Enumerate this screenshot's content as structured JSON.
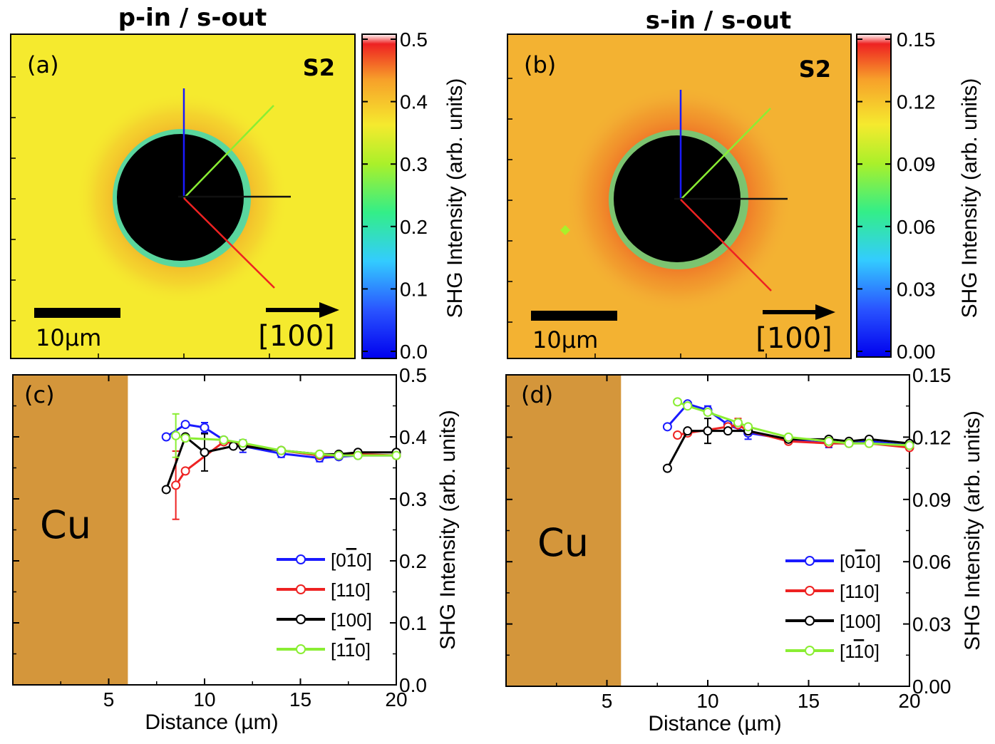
{
  "figure": {
    "panel_a": {
      "title": "p-in / s-out",
      "label": "(a)",
      "sample": "S2",
      "scale_bar": "10μm",
      "direction": "[100]",
      "colorbar": {
        "min": 0.0,
        "max": 0.5,
        "ticks": [
          "0.0",
          "0.1",
          "0.2",
          "0.3",
          "0.4",
          "0.5"
        ]
      },
      "colorbar_label": "SHG Intensity (arb. units)"
    },
    "panel_b": {
      "title": "s-in / s-out",
      "label": "(b)",
      "sample": "S2",
      "scale_bar": "10μm",
      "direction": "[100]",
      "colorbar": {
        "min": 0.0,
        "max": 0.15,
        "ticks": [
          "0.00",
          "0.03",
          "0.06",
          "0.09",
          "0.12",
          "0.15"
        ]
      },
      "colorbar_label": "SHG Intensity (arb. units)"
    },
    "panel_c": {
      "label": "(c)",
      "region_label": "Cu"
    },
    "panel_d": {
      "label": "(d)",
      "region_label": "Cu"
    },
    "colors": {
      "map_bg": "#f5ea2e",
      "map_ring": "#f0a62a",
      "cu": "#d4963b",
      "blue": "#1a1aff",
      "red": "#ee2222",
      "black": "#000000",
      "green": "#8aee33"
    }
  },
  "chart_data": [
    {
      "type": "line",
      "panel": "(c)",
      "xlabel": "Distance (µm)",
      "ylabel": "SHG Intensity (arb. units)",
      "xlim": [
        0,
        20
      ],
      "ylim": [
        0.0,
        0.5
      ],
      "xticks": [
        "5",
        "10",
        "15",
        "20"
      ],
      "yticks": [
        "0.0",
        "0.1",
        "0.2",
        "0.3",
        "0.4",
        "0.5"
      ],
      "cu_region": [
        0,
        6
      ],
      "legend_position": "bottom-right",
      "series": [
        {
          "name": "[0̅1̅0]",
          "name_main": "[0",
          "name_bar": "1",
          "name_end": "0]",
          "color": "#1a1aff",
          "x": [
            8.0,
            9.0,
            10.0,
            11.0,
            12.0,
            14.0,
            16.0,
            17.0,
            18.0,
            20.0
          ],
          "y": [
            0.4,
            0.42,
            0.415,
            0.395,
            0.385,
            0.373,
            0.366,
            0.368,
            0.37,
            0.37
          ],
          "err": [
            0,
            0,
            0.008,
            0,
            0.01,
            0.006,
            0.006,
            0,
            0,
            0
          ]
        },
        {
          "name": "[110]",
          "name_main": "[110]",
          "name_bar": "",
          "name_end": "",
          "color": "#ee2222",
          "x": [
            8.5,
            9.0,
            11.0,
            12.0,
            14.0,
            16.0,
            17.0,
            18.0,
            20.0
          ],
          "y": [
            0.322,
            0.345,
            0.392,
            0.388,
            0.378,
            0.37,
            0.37,
            0.372,
            0.37
          ],
          "err": [
            0.055,
            0,
            0,
            0,
            0,
            0,
            0,
            0,
            0
          ]
        },
        {
          "name": "[100]",
          "name_main": "[100]",
          "name_bar": "",
          "name_end": "",
          "color": "#000000",
          "x": [
            8.0,
            9.0,
            10.0,
            11.5,
            12.0,
            14.0,
            16.0,
            17.0,
            18.0,
            20.0
          ],
          "y": [
            0.315,
            0.4,
            0.375,
            0.385,
            0.385,
            0.378,
            0.372,
            0.372,
            0.375,
            0.375
          ],
          "err": [
            0,
            0,
            0.03,
            0,
            0,
            0,
            0,
            0,
            0,
            0
          ]
        },
        {
          "name": "[11̅0]",
          "name_main": "[1",
          "name_bar": "1",
          "name_end": "0]",
          "color": "#8aee33",
          "x": [
            8.5,
            9.0,
            11.0,
            12.0,
            14.0,
            16.0,
            17.0,
            18.0,
            20.0
          ],
          "y": [
            0.402,
            0.398,
            0.395,
            0.39,
            0.378,
            0.372,
            0.37,
            0.37,
            0.37
          ],
          "err": [
            0.035,
            0,
            0,
            0,
            0,
            0,
            0,
            0,
            0
          ]
        }
      ]
    },
    {
      "type": "line",
      "panel": "(d)",
      "xlabel": "Distance (µm)",
      "ylabel": "SHG Intensity (arb. units)",
      "xlim": [
        0,
        20
      ],
      "ylim": [
        0.0,
        0.15
      ],
      "xticks": [
        "5",
        "10",
        "15",
        "20"
      ],
      "yticks": [
        "0.00",
        "0.03",
        "0.06",
        "0.09",
        "0.12",
        "0.15"
      ],
      "cu_region": [
        0,
        5.7
      ],
      "legend_position": "bottom-right",
      "series": [
        {
          "name": "[0̅1̅0]",
          "name_main": "[0",
          "name_bar": "1",
          "name_end": "0]",
          "color": "#1a1aff",
          "x": [
            8.0,
            9.0,
            10.0,
            11.0,
            12.0,
            14.0,
            16.0,
            17.0,
            18.0,
            20.0
          ],
          "y": [
            0.125,
            0.136,
            0.133,
            0.126,
            0.122,
            0.119,
            0.117,
            0.117,
            0.118,
            0.116
          ],
          "err": [
            0,
            0,
            0.002,
            0,
            0.003,
            0,
            0.002,
            0,
            0,
            0
          ]
        },
        {
          "name": "[110]",
          "name_main": "[110]",
          "name_bar": "",
          "name_end": "",
          "color": "#ee2222",
          "x": [
            8.5,
            9.0,
            11.0,
            11.5,
            12.0,
            14.0,
            16.0,
            17.0,
            18.0,
            20.0
          ],
          "y": [
            0.121,
            0.122,
            0.125,
            0.126,
            0.123,
            0.118,
            0.117,
            0.117,
            0.117,
            0.115
          ],
          "err": [
            0,
            0,
            0,
            0.003,
            0,
            0,
            0,
            0,
            0,
            0
          ]
        },
        {
          "name": "[100]",
          "name_main": "[100]",
          "name_bar": "",
          "name_end": "",
          "color": "#000000",
          "x": [
            8.0,
            9.0,
            10.0,
            11.0,
            12.0,
            14.0,
            16.0,
            17.0,
            18.0,
            20.0
          ],
          "y": [
            0.105,
            0.123,
            0.123,
            0.123,
            0.123,
            0.119,
            0.119,
            0.118,
            0.119,
            0.117
          ],
          "err": [
            0,
            0,
            0.006,
            0,
            0,
            0,
            0,
            0,
            0,
            0
          ]
        },
        {
          "name": "[11̅0]",
          "name_main": "[1",
          "name_bar": "1",
          "name_end": "0]",
          "color": "#8aee33",
          "x": [
            8.5,
            9.0,
            10.0,
            11.5,
            12.0,
            14.0,
            16.0,
            17.0,
            18.0,
            20.0
          ],
          "y": [
            0.137,
            0.135,
            0.132,
            0.127,
            0.125,
            0.12,
            0.118,
            0.117,
            0.117,
            0.116
          ],
          "err": [
            0,
            0,
            0,
            0,
            0,
            0,
            0,
            0,
            0,
            0
          ]
        }
      ]
    }
  ]
}
